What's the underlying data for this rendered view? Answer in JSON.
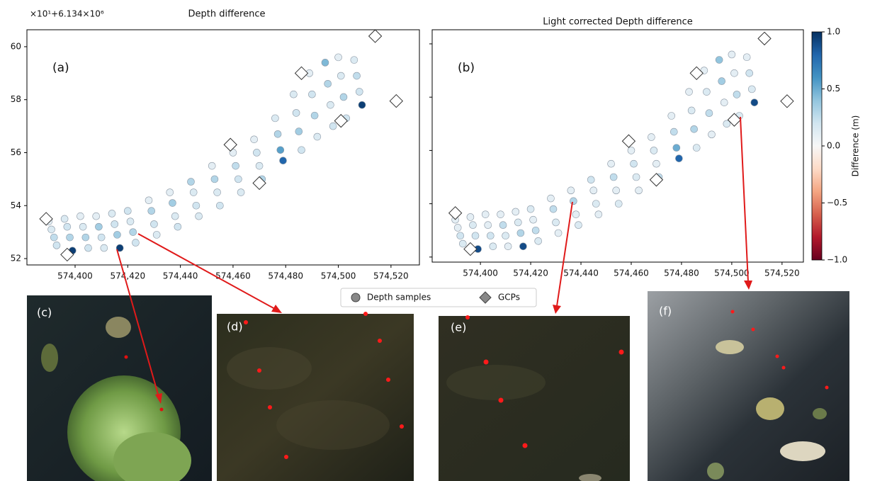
{
  "chart_data": [
    {
      "type": "scatter",
      "title": "Depth difference",
      "offset_label": "×10¹+6.134×10⁶",
      "panel_label": "(a)",
      "xlim": [
        574381.7,
        574530.8
      ],
      "ylim": [
        51.76,
        60.64
      ],
      "xticks": [
        {
          "value": 574400,
          "label": "574,400"
        },
        {
          "value": 574420,
          "label": "574,420"
        },
        {
          "value": 574440,
          "label": "574,440"
        },
        {
          "value": 574460,
          "label": "574,460"
        },
        {
          "value": 574480,
          "label": "574,480"
        },
        {
          "value": 574500,
          "label": "574,500"
        },
        {
          "value": 574520,
          "label": "574,520"
        }
      ],
      "yticks": [
        52,
        54,
        56,
        58,
        60
      ],
      "show_ytick_labels": true,
      "series": [
        {
          "name": "Depth samples",
          "marker": "circle",
          "x": [
            574393,
            574392,
            574391,
            574390,
            574399,
            574398,
            574397,
            574396,
            574405,
            574404,
            574403,
            574402,
            574411,
            574410,
            574409,
            574408,
            574417,
            574416,
            574415,
            574414,
            574423,
            574422,
            574421,
            574420,
            574431,
            574430,
            574429,
            574428,
            574439,
            574438,
            574437,
            574436,
            574447,
            574446,
            574445,
            574444,
            574455,
            574454,
            574453,
            574452,
            574463,
            574462,
            574461,
            574460,
            574471,
            574470,
            574469,
            574468,
            574479,
            574478,
            574477,
            574476,
            574486,
            574485,
            574484,
            574483,
            574492,
            574491,
            574490,
            574489,
            574498,
            574497,
            574496,
            574495,
            574503,
            574502,
            574501,
            574500,
            574509,
            574508,
            574507,
            574506
          ],
          "y": [
            52.5,
            52.8,
            53.1,
            53.4,
            52.3,
            52.8,
            53.2,
            53.5,
            52.4,
            52.8,
            53.2,
            53.6,
            52.4,
            52.8,
            53.2,
            53.6,
            52.4,
            52.9,
            53.3,
            53.7,
            52.6,
            53.0,
            53.4,
            53.8,
            52.9,
            53.3,
            53.8,
            54.2,
            53.2,
            53.6,
            54.1,
            54.5,
            53.6,
            54.0,
            54.5,
            54.9,
            54.0,
            54.5,
            55.0,
            55.5,
            54.5,
            55.0,
            55.5,
            56.0,
            55.0,
            55.5,
            56.0,
            56.5,
            55.7,
            56.1,
            56.7,
            57.3,
            56.1,
            56.8,
            57.5,
            58.2,
            56.6,
            57.4,
            58.2,
            59.0,
            57.0,
            57.8,
            58.6,
            59.4,
            57.3,
            58.1,
            58.9,
            59.6,
            57.8,
            58.3,
            58.9,
            59.5
          ],
          "values": [
            0.2,
            0.25,
            0.15,
            0.1,
            0.95,
            0.3,
            0.2,
            0.15,
            0.2,
            0.3,
            0.15,
            0.1,
            0.15,
            0.2,
            0.35,
            0.1,
            0.95,
            0.35,
            0.2,
            0.15,
            0.2,
            0.3,
            0.15,
            0.2,
            0.15,
            0.2,
            0.3,
            0.1,
            0.2,
            0.15,
            0.35,
            0.1,
            0.15,
            0.2,
            0.15,
            0.3,
            0.2,
            0.15,
            0.3,
            0.1,
            0.15,
            0.2,
            0.25,
            0.1,
            0.3,
            0.15,
            0.2,
            0.1,
            0.8,
            0.55,
            0.3,
            0.15,
            0.2,
            0.35,
            0.2,
            0.15,
            0.15,
            0.3,
            0.2,
            0.1,
            0.2,
            0.15,
            0.3,
            0.45,
            0.2,
            0.3,
            0.15,
            0.1,
            0.95,
            0.2,
            0.25,
            0.15
          ]
        },
        {
          "name": "GCPs",
          "marker": "diamond",
          "color": "#ffffff",
          "x": [
            574389,
            574397,
            574459,
            574470,
            574486,
            574501,
            574514,
            574522
          ],
          "y": [
            53.5,
            52.15,
            56.3,
            54.85,
            59.0,
            57.2,
            60.4,
            57.95
          ]
        }
      ]
    },
    {
      "type": "scatter",
      "title": "Light corrected Depth difference",
      "panel_label": "(b)",
      "xlim": [
        574380.8,
        574528.5
      ],
      "ylim": [
        51.81,
        60.53
      ],
      "xticks": [
        {
          "value": 574400,
          "label": "574,400"
        },
        {
          "value": 574420,
          "label": "574,420"
        },
        {
          "value": 574440,
          "label": "574,440"
        },
        {
          "value": 574460,
          "label": "574,460"
        },
        {
          "value": 574480,
          "label": "574,480"
        },
        {
          "value": 574500,
          "label": "574,500"
        },
        {
          "value": 574520,
          "label": "574,520"
        }
      ],
      "yticks": [
        52,
        54,
        56,
        58,
        60
      ],
      "show_ytick_labels": false,
      "series": [
        {
          "marker": "circle",
          "x": [
            574393,
            574392,
            574391,
            574390,
            574399,
            574398,
            574397,
            574396,
            574405,
            574404,
            574403,
            574402,
            574411,
            574410,
            574409,
            574408,
            574417,
            574416,
            574415,
            574414,
            574423,
            574422,
            574421,
            574420,
            574431,
            574430,
            574429,
            574428,
            574439,
            574438,
            574437,
            574436,
            574447,
            574446,
            574445,
            574444,
            574455,
            574454,
            574453,
            574452,
            574463,
            574462,
            574461,
            574460,
            574471,
            574470,
            574469,
            574468,
            574479,
            574478,
            574477,
            574476,
            574486,
            574485,
            574484,
            574483,
            574492,
            574491,
            574490,
            574489,
            574498,
            574497,
            574496,
            574495,
            574503,
            574502,
            574501,
            574500,
            574509,
            574508,
            574507,
            574506
          ],
          "y": [
            52.5,
            52.8,
            53.1,
            53.4,
            52.3,
            52.8,
            53.2,
            53.5,
            52.4,
            52.8,
            53.2,
            53.6,
            52.4,
            52.8,
            53.2,
            53.6,
            52.4,
            52.9,
            53.3,
            53.7,
            52.6,
            53.0,
            53.4,
            53.8,
            52.9,
            53.3,
            53.8,
            54.2,
            53.2,
            53.6,
            54.1,
            54.5,
            53.6,
            54.0,
            54.5,
            54.9,
            54.0,
            54.5,
            55.0,
            55.5,
            54.5,
            55.0,
            55.5,
            56.0,
            55.0,
            55.5,
            56.0,
            56.5,
            55.7,
            56.1,
            56.7,
            57.3,
            56.1,
            56.8,
            57.5,
            58.2,
            56.6,
            57.4,
            58.2,
            59.0,
            57.0,
            57.8,
            58.6,
            59.4,
            57.3,
            58.1,
            58.9,
            59.6,
            57.8,
            58.3,
            58.9,
            59.5
          ],
          "values": [
            0.15,
            0.2,
            0.1,
            0.1,
            0.9,
            0.2,
            0.15,
            0.1,
            0.15,
            0.2,
            0.1,
            0.1,
            0.1,
            0.15,
            0.25,
            0.1,
            0.9,
            0.3,
            0.15,
            0.1,
            0.15,
            0.25,
            0.1,
            0.15,
            0.1,
            0.15,
            0.25,
            0.1,
            0.15,
            0.1,
            0.3,
            0.1,
            0.1,
            0.15,
            0.1,
            0.2,
            0.15,
            0.1,
            0.25,
            0.1,
            0.1,
            0.15,
            0.2,
            0.1,
            0.25,
            0.1,
            0.15,
            0.1,
            0.8,
            0.5,
            0.25,
            0.1,
            0.15,
            0.3,
            0.15,
            0.1,
            0.1,
            0.25,
            0.15,
            0.1,
            0.15,
            0.1,
            0.35,
            0.4,
            0.15,
            0.25,
            0.1,
            0.1,
            0.9,
            0.15,
            0.2,
            0.1
          ]
        },
        {
          "marker": "diamond",
          "color": "#ffffff",
          "x": [
            574390,
            574396,
            574459,
            574470,
            574486,
            574501,
            574513,
            574522
          ],
          "y": [
            53.65,
            52.3,
            56.35,
            54.9,
            58.9,
            57.15,
            60.2,
            57.85
          ]
        }
      ],
      "colorbar": {
        "label": "Difference (m)",
        "lim": [
          -1,
          1
        ],
        "cmap": [
          "#67001f",
          "#b2182b",
          "#d6604d",
          "#f4a582",
          "#fddbc7",
          "#f7f7f7",
          "#d1e5f0",
          "#92c5de",
          "#4393c3",
          "#2166ac",
          "#053061"
        ],
        "ticks": [
          {
            "value": 1,
            "label": "1.0"
          },
          {
            "value": 0.5,
            "label": "0.5"
          },
          {
            "value": 0,
            "label": "0.0"
          },
          {
            "value": -0.5,
            "label": "−0.5"
          },
          {
            "value": -1,
            "label": "−1.0"
          }
        ]
      }
    }
  ],
  "photo_labels": [
    "(c)",
    "(d)",
    "(e)",
    "(f)"
  ]
}
